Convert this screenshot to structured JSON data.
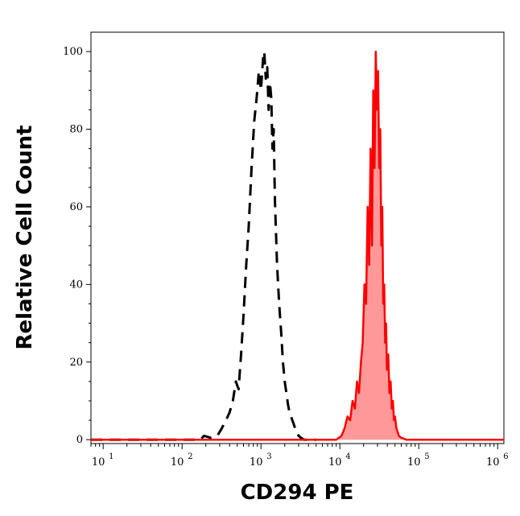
{
  "chart_data": {
    "type": "histogram",
    "xlabel": "CD294 PE",
    "ylabel": "Relative Cell Count",
    "x_scale": "log",
    "xlim": [
      7,
      1200000
    ],
    "ylim": [
      -1,
      105
    ],
    "x_ticks": [
      {
        "value": 10,
        "base": "10",
        "exp": "1"
      },
      {
        "value": 100,
        "base": "10",
        "exp": "2"
      },
      {
        "value": 1000,
        "base": "10",
        "exp": "3"
      },
      {
        "value": 10000,
        "base": "10",
        "exp": "4"
      },
      {
        "value": 100000,
        "base": "10",
        "exp": "5"
      },
      {
        "value": 1000000,
        "base": "10",
        "exp": "6"
      }
    ],
    "y_ticks": [
      {
        "value": 0,
        "label": "0"
      },
      {
        "value": 20,
        "label": "20"
      },
      {
        "value": 40,
        "label": "40"
      },
      {
        "value": 60,
        "label": "60"
      },
      {
        "value": 80,
        "label": "80"
      },
      {
        "value": 100,
        "label": "100"
      }
    ],
    "grid": false,
    "series": [
      {
        "style": "dashed",
        "color": "#000000",
        "fill": "none",
        "x": [
          7,
          100,
          170,
          190,
          230,
          280,
          320,
          360,
          400,
          440,
          480,
          520,
          560,
          600,
          650,
          700,
          760,
          820,
          880,
          940,
          1000,
          1060,
          1100,
          1150,
          1200,
          1250,
          1300,
          1350,
          1400,
          1450,
          1500,
          1600,
          1700,
          1800,
          1900,
          2000,
          2100,
          2200,
          2300,
          2400,
          2500,
          2600,
          2700,
          2800,
          3000,
          3200,
          3500,
          4000,
          5000
        ],
        "y": [
          0,
          0,
          0,
          1,
          0.5,
          1,
          3,
          5,
          7,
          10,
          15,
          13,
          22,
          32,
          45,
          55,
          70,
          82,
          88,
          95,
          90,
          98,
          100,
          93,
          96,
          85,
          92,
          88,
          75,
          80,
          62,
          45,
          35,
          28,
          20,
          15,
          12,
          9,
          7,
          6,
          5,
          4,
          3,
          2,
          1,
          0.5,
          0,
          0,
          0
        ]
      },
      {
        "style": "solid",
        "color": "#ff0000",
        "fill": "#ff9999",
        "x": [
          7,
          9000,
          10500,
          11500,
          12500,
          13500,
          14500,
          15500,
          16500,
          17500,
          18500,
          19500,
          20500,
          21500,
          22500,
          23500,
          24500,
          25500,
          26500,
          27500,
          28500,
          29500,
          30500,
          31500,
          32500,
          33500,
          34500,
          35500,
          36500,
          37500,
          38500,
          39500,
          41000,
          42500,
          44000,
          45500,
          47000,
          48500,
          50000,
          52000,
          54000,
          56000,
          60000,
          70000,
          1200000
        ],
        "y": [
          0,
          0,
          1,
          3,
          6,
          5,
          10,
          8,
          15,
          12,
          20,
          25,
          40,
          35,
          60,
          45,
          75,
          50,
          90,
          70,
          100,
          85,
          95,
          70,
          80,
          50,
          60,
          35,
          40,
          25,
          30,
          18,
          22,
          12,
          15,
          8,
          10,
          5,
          6,
          3,
          2,
          1,
          0.5,
          0,
          0
        ]
      }
    ]
  }
}
